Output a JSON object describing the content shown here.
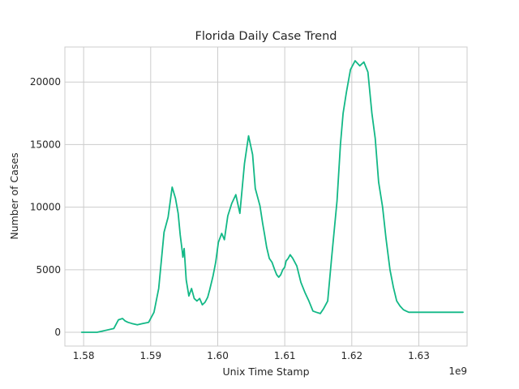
{
  "chart_data": {
    "type": "line",
    "title": "Florida Daily Case Trend",
    "xlabel": "Unix Time Stamp",
    "ylabel": "Number of Cases",
    "x_offset_label": "1e9",
    "xlim": [
      1.5772,
      1.6372
    ],
    "ylim": [
      -1100,
      22800
    ],
    "x_ticks": [
      1.58,
      1.59,
      1.6,
      1.61,
      1.62,
      1.63
    ],
    "x_tick_labels": [
      "1.58",
      "1.59",
      "1.60",
      "1.61",
      "1.62",
      "1.63"
    ],
    "y_ticks": [
      0,
      5000,
      10000,
      15000,
      20000
    ],
    "y_tick_labels": [
      "0",
      "5000",
      "10000",
      "15000",
      "20000"
    ],
    "grid": true,
    "line_color": "#12b886",
    "series": [
      {
        "x": [
          1.5797,
          1.582,
          1.5845,
          1.5852,
          1.5858,
          1.5862,
          1.5866,
          1.5872,
          1.588,
          1.5888,
          1.5897,
          1.5905,
          1.5912,
          1.592,
          1.5926,
          1.5932,
          1.5937,
          1.5941,
          1.5944,
          1.5947,
          1.5948,
          1.595,
          1.5953,
          1.5957,
          1.5961,
          1.5965,
          1.5969,
          1.5973,
          1.5977,
          1.5981,
          1.5985,
          1.5988,
          1.5993,
          1.5997,
          1.6001,
          1.6006,
          1.601,
          1.6015,
          1.6021,
          1.6027,
          1.6033,
          1.604,
          1.6046,
          1.6052,
          1.6056,
          1.606,
          1.6063,
          1.6067,
          1.607,
          1.6073,
          1.6077,
          1.6081,
          1.6085,
          1.6088,
          1.6091,
          1.6094,
          1.6097,
          1.61,
          1.6102,
          1.6105,
          1.6108,
          1.6112,
          1.6118,
          1.6124,
          1.613,
          1.6136,
          1.6142,
          1.6147,
          1.6153,
          1.6158,
          1.6164,
          1.617,
          1.6178,
          1.6183,
          1.6187,
          1.6192,
          1.6198,
          1.6205,
          1.6212,
          1.6218,
          1.6224,
          1.623,
          1.6235,
          1.624,
          1.6246,
          1.6251,
          1.6257,
          1.6262,
          1.6267,
          1.6272,
          1.6277,
          1.6281,
          1.6285,
          1.6288,
          1.6291,
          1.6295,
          1.6298,
          1.6302,
          1.6305,
          1.6309,
          1.6313,
          1.6318,
          1.6322,
          1.6326,
          1.633,
          1.6336,
          1.6342,
          1.635,
          1.6357,
          1.6366
        ],
        "values": [
          0,
          0,
          300,
          1000,
          1100,
          900,
          800,
          700,
          600,
          700,
          800,
          1600,
          3500,
          8000,
          9200,
          11600,
          10700,
          9500,
          7800,
          6500,
          6000,
          6700,
          4200,
          2900,
          3500,
          2700,
          2500,
          2700,
          2200,
          2400,
          2800,
          3400,
          4500,
          5600,
          7200,
          7900,
          7400,
          9300,
          10300,
          11000,
          9500,
          13500,
          15700,
          14200,
          11500,
          10700,
          10100,
          8700,
          7800,
          6800,
          5900,
          5600,
          5000,
          4600,
          4400,
          4600,
          5000,
          5200,
          5700,
          5900,
          6200,
          5900,
          5300,
          4000,
          3200,
          2500,
          1700,
          1600,
          1500,
          1900,
          2500,
          6000,
          10500,
          15000,
          17500,
          19200,
          21000,
          21700,
          21300,
          21600,
          20800,
          17500,
          15500,
          12000,
          10000,
          7500,
          5000,
          3600,
          2500,
          2100,
          1800,
          1700,
          1600,
          1600,
          1600,
          1600,
          1600,
          1600,
          1600,
          1600,
          1600,
          1600,
          1600,
          1600,
          1600,
          1600,
          1600,
          1600,
          1600,
          1600
        ]
      }
    ]
  }
}
